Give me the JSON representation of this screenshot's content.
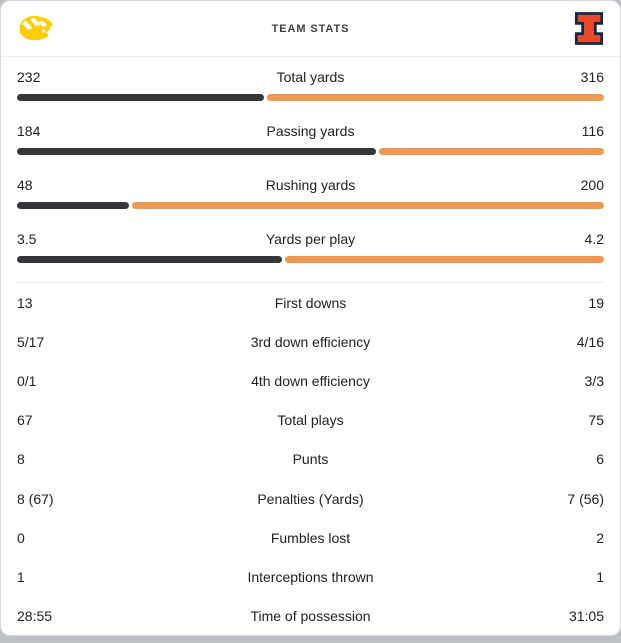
{
  "header": {
    "title": "TEAM STATS",
    "left_team": {
      "name": "Iowa Hawkeyes",
      "logo": "iowa-tigerhawk",
      "color": "#FFCD00"
    },
    "right_team": {
      "name": "Illinois Fighting Illini",
      "logo": "illinois-block-i",
      "color": "#E84A27",
      "outline": "#13294B"
    }
  },
  "colors": {
    "left_bar": "#35363A",
    "right_bar": "#ED9853",
    "divider": "#E8EAED",
    "card_border": "#D8DADD",
    "page_background": "#BDC1C6",
    "text": "#202124",
    "title_text": "#3C4043"
  },
  "chart_data": {
    "type": "bar",
    "description": "Paired horizontal team-comparison bars; each bar split proportionally between the two teams' values",
    "categories": [
      "Total yards",
      "Passing yards",
      "Rushing yards",
      "Yards per play"
    ],
    "series": [
      {
        "name": "Iowa Hawkeyes",
        "color": "#35363A",
        "values": [
          232,
          184,
          48,
          3.5
        ]
      },
      {
        "name": "Illinois Fighting Illini",
        "color": "#ED9853",
        "values": [
          316,
          116,
          200,
          4.2
        ]
      }
    ],
    "title": "TEAM STATS",
    "legend_position": "none",
    "grid": false
  },
  "bar_rows": [
    {
      "label": "Total yards",
      "left": "232",
      "right": "316",
      "left_num": 232,
      "right_num": 316
    },
    {
      "label": "Passing yards",
      "left": "184",
      "right": "116",
      "left_num": 184,
      "right_num": 116
    },
    {
      "label": "Rushing yards",
      "left": "48",
      "right": "200",
      "left_num": 48,
      "right_num": 200
    },
    {
      "label": "Yards per play",
      "left": "3.5",
      "right": "4.2",
      "left_num": 3.5,
      "right_num": 4.2
    }
  ],
  "list_rows": [
    {
      "label": "First downs",
      "left": "13",
      "right": "19"
    },
    {
      "label": "3rd down efficiency",
      "left": "5/17",
      "right": "4/16"
    },
    {
      "label": "4th down efficiency",
      "left": "0/1",
      "right": "3/3"
    },
    {
      "label": "Total plays",
      "left": "67",
      "right": "75"
    },
    {
      "label": "Punts",
      "left": "8",
      "right": "6"
    },
    {
      "label": "Penalties (Yards)",
      "left": "8 (67)",
      "right": "7 (56)"
    },
    {
      "label": "Fumbles lost",
      "left": "0",
      "right": "2"
    },
    {
      "label": "Interceptions thrown",
      "left": "1",
      "right": "1"
    },
    {
      "label": "Time of possession",
      "left": "28:55",
      "right": "31:05"
    }
  ]
}
